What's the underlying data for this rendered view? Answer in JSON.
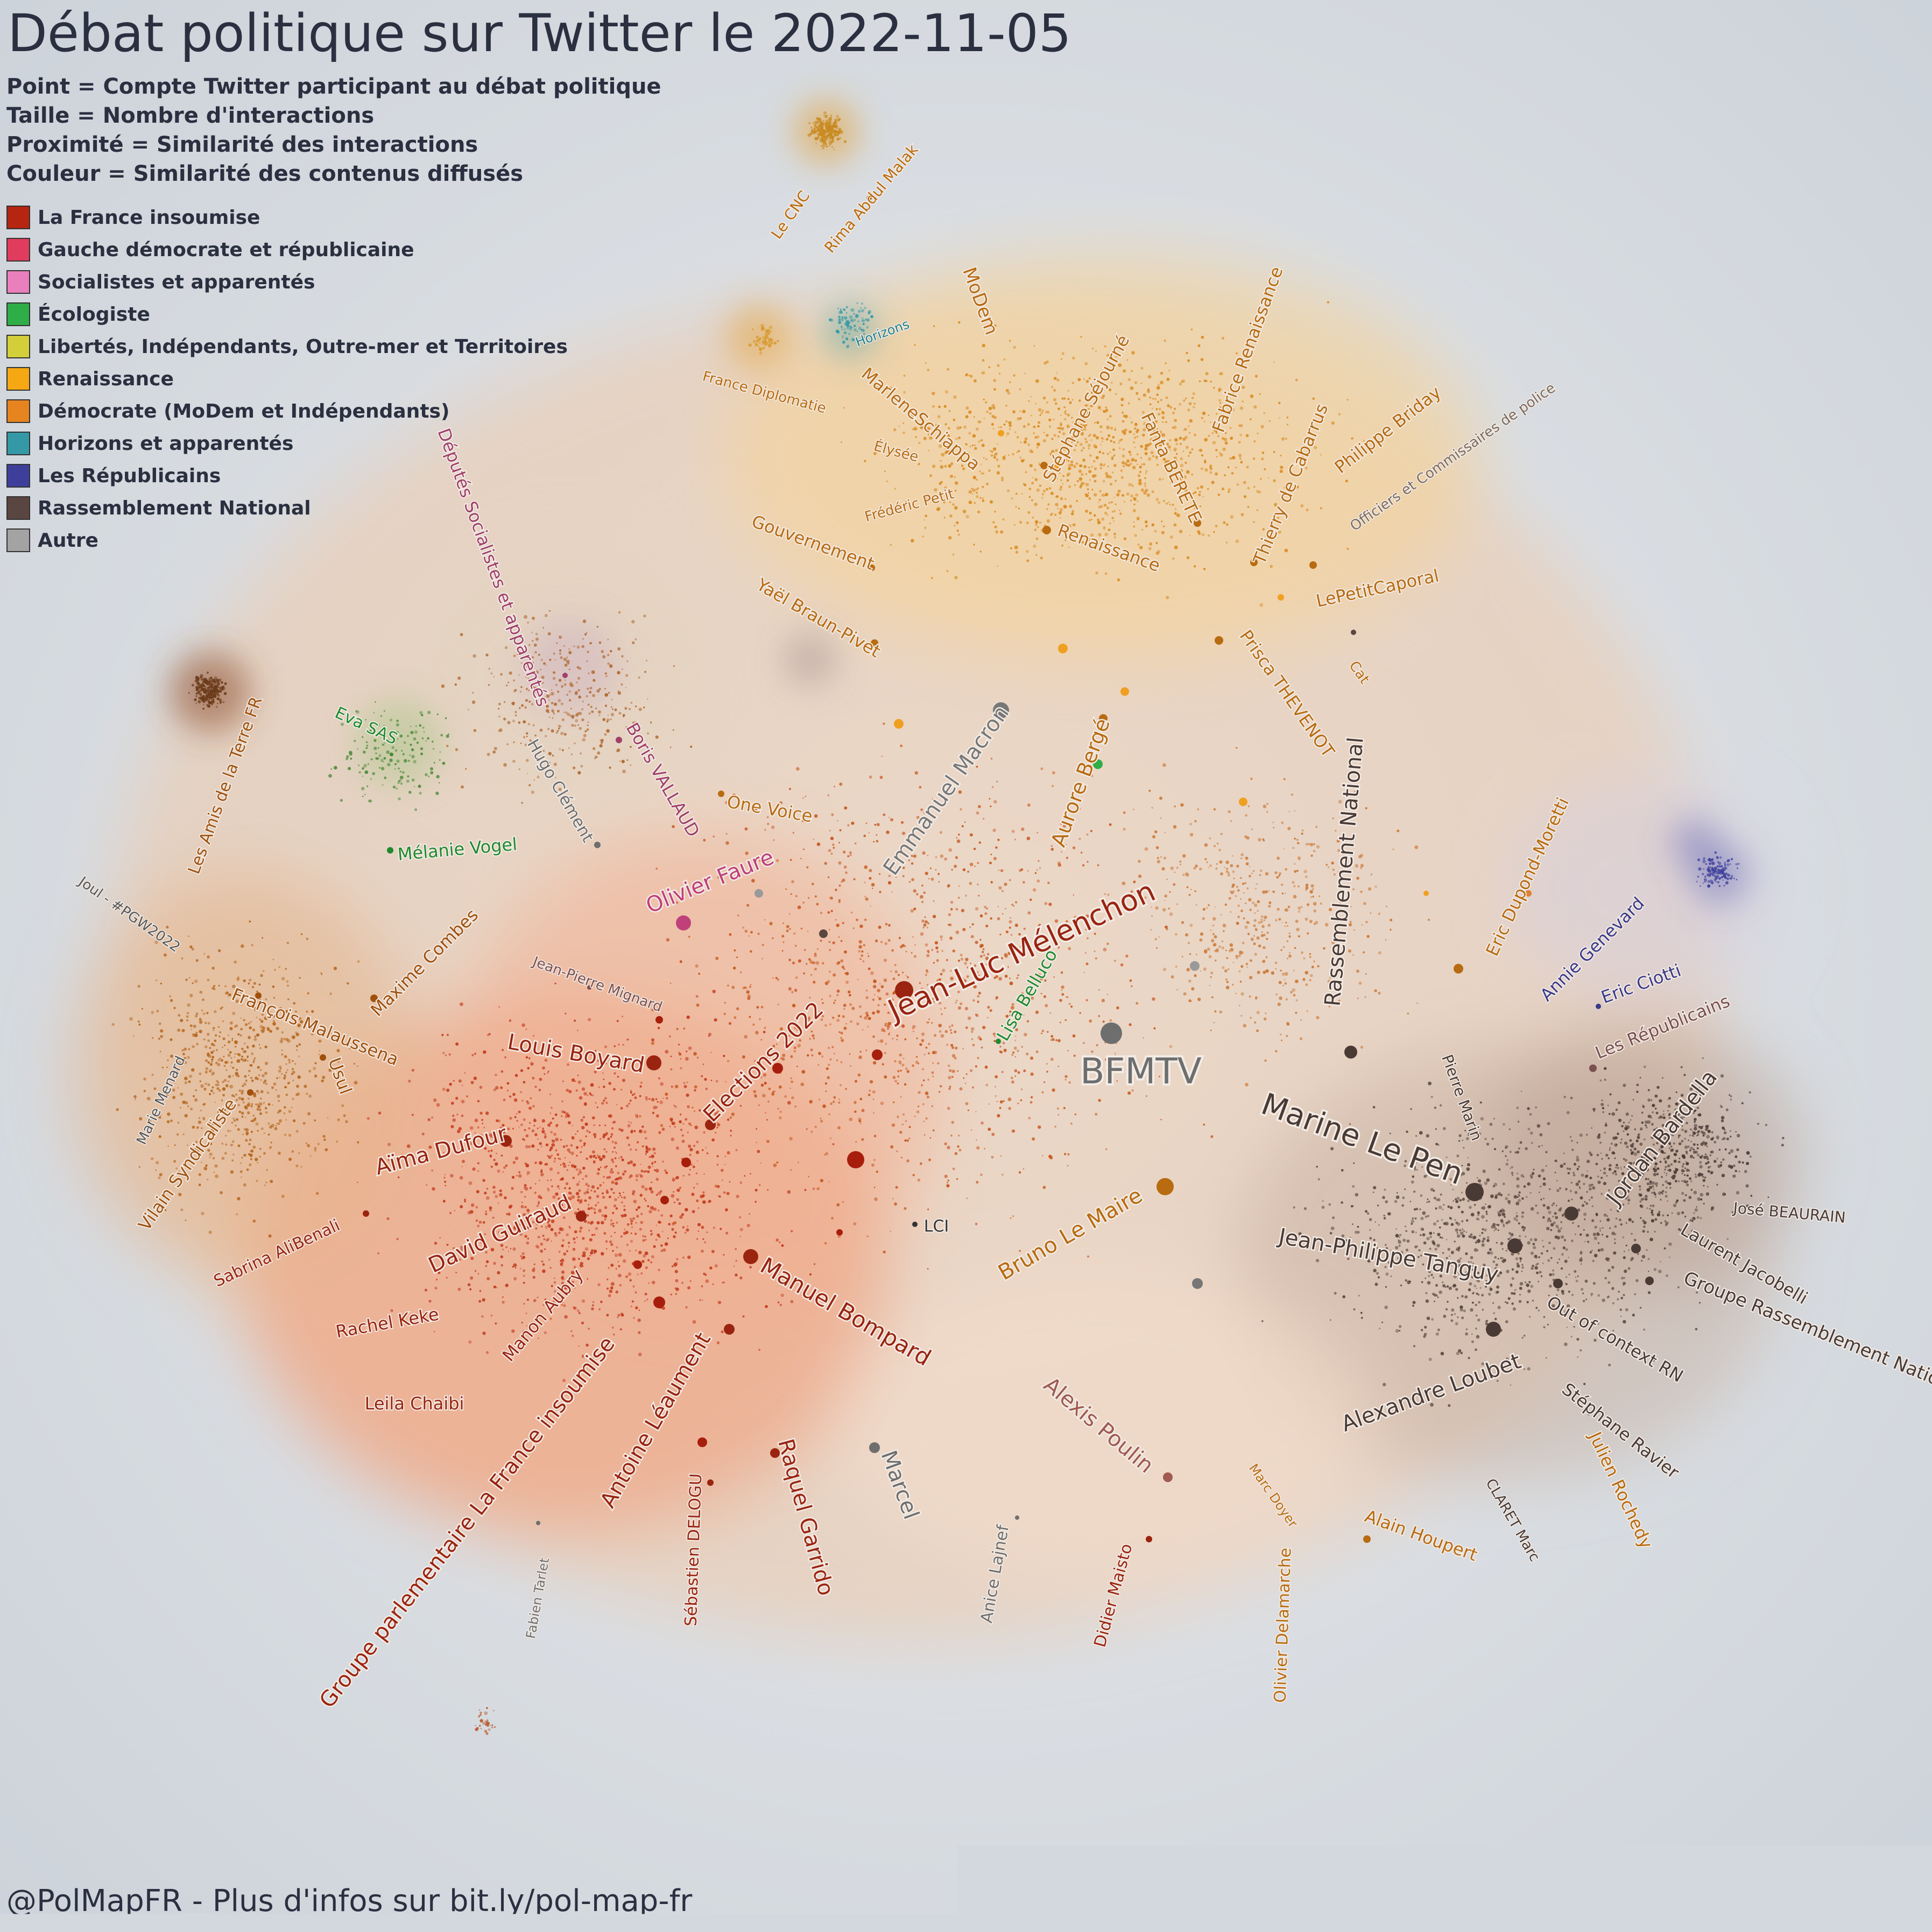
{
  "title": "Débat politique sur Twitter le 2022-11-05",
  "legend_text": [
    "Point = Compte Twitter participant au débat politique",
    "Taille = Nombre d'interactions",
    "Proximité = Similarité des interactions",
    "Couleur = Similarité des contenus diffusés"
  ],
  "legend_items": [
    {
      "label": "La France insoumise",
      "color": "#b52510"
    },
    {
      "label": "Gauche démocrate et républicaine",
      "color": "#e03c5e"
    },
    {
      "label": "Socialistes et apparentés",
      "color": "#e97fbd"
    },
    {
      "label": "Écologiste",
      "color": "#2fad46"
    },
    {
      "label": "Libertés, Indépendants, Outre-mer et Territoires",
      "color": "#d3cf3b"
    },
    {
      "label": "Renaissance",
      "color": "#f5a813"
    },
    {
      "label": "Démocrate (MoDem et Indépendants)",
      "color": "#e6841f"
    },
    {
      "label": "Horizons et apparentés",
      "color": "#3598a7"
    },
    {
      "label": "Les Républicains",
      "color": "#3e3f9b"
    },
    {
      "label": "Rassemblement National",
      "color": "#5a4640"
    },
    {
      "label": "Autre",
      "color": "#a3a3a3"
    }
  ],
  "footer": "@PolMapFR - Plus d'infos sur bit.ly/pol-map-fr",
  "accounts": [
    {
      "label": "Le CNC",
      "color": "#b86b10"
    },
    {
      "label": "Rima Abdul Malak",
      "color": "#b86b10"
    },
    {
      "label": "Horizons",
      "color": "#1f7f8c"
    },
    {
      "label": "MoDem",
      "color": "#b86b10"
    },
    {
      "label": "France Diplomatie",
      "color": "#b86b10"
    },
    {
      "label": "MarleneSchiappa",
      "color": "#b86b10"
    },
    {
      "label": "Stéphane Séjourné",
      "color": "#b86b10"
    },
    {
      "label": "Fabrice Renaissance",
      "color": "#b86b10"
    },
    {
      "label": "Philippe Briday",
      "color": "#b86b10"
    },
    {
      "label": "Officiers et Commissaires de police",
      "color": "#7a6a60"
    },
    {
      "label": "Élysée",
      "color": "#b86b10"
    },
    {
      "label": "Fanta BERETE",
      "color": "#b86b10"
    },
    {
      "label": "Thierry de Cabarrus",
      "color": "#b86b10"
    },
    {
      "label": "Frédéric Petit",
      "color": "#b86b10"
    },
    {
      "label": "Gouvernement",
      "color": "#b86b10"
    },
    {
      "label": "Renaissance",
      "color": "#b86b10"
    },
    {
      "label": "LePetitCaporal",
      "color": "#b86b10"
    },
    {
      "label": "Yaël Braun-Pivet",
      "color": "#b86b10"
    },
    {
      "label": "Cat",
      "color": "#b86b10"
    },
    {
      "label": "Prisca THEVENOT",
      "color": "#b86b10"
    },
    {
      "label": "Députés Socialistes et apparentés",
      "color": "#a0406a"
    },
    {
      "label": "Eva SAS",
      "color": "#1f8a2e"
    },
    {
      "label": "Hugo Clément",
      "color": "#6e6e6e"
    },
    {
      "label": "Boris VALLAUD",
      "color": "#a0406a"
    },
    {
      "label": "One Voice",
      "color": "#b86b10"
    },
    {
      "label": "Emmanuel Macron",
      "color": "#777777"
    },
    {
      "label": "Aurore Bergé",
      "color": "#b86b10"
    },
    {
      "label": "Rassemblement National",
      "color": "#4a3a35"
    },
    {
      "label": "Les Amis de la Terre FR",
      "color": "#a0500c"
    },
    {
      "label": "Mélanie Vogel",
      "color": "#1f8a2e"
    },
    {
      "label": "Olivier Faure",
      "color": "#c0407a"
    },
    {
      "label": "Jean-Luc Mélenchon",
      "color": "#9a2410"
    },
    {
      "label": "Eric Dupond-Moretti",
      "color": "#b86b10"
    },
    {
      "label": "Annie Genevard",
      "color": "#3a3a8a"
    },
    {
      "label": "Eric Ciotti",
      "color": "#3a3a8a"
    },
    {
      "label": "Les Républicains",
      "color": "#7a5050"
    },
    {
      "label": "Joul - #PGW2022",
      "color": "#555555"
    },
    {
      "label": "Maxime Combes",
      "color": "#a0500c"
    },
    {
      "label": "Jean-Pierre Mignard",
      "color": "#7a5050"
    },
    {
      "label": "Lisa Belluco",
      "color": "#1f8a2e"
    },
    {
      "label": "François Malaussena",
      "color": "#a0500c"
    },
    {
      "label": "Louis Boyard",
      "color": "#9a2410"
    },
    {
      "label": "Elections 2022",
      "color": "#9a2410"
    },
    {
      "label": "BFMTV",
      "color": "#6e6e6e"
    },
    {
      "label": "Pierre Marin",
      "color": "#4a3a35"
    },
    {
      "label": "Marine Le Pen",
      "color": "#4a3a35"
    },
    {
      "label": "Usul",
      "color": "#a0500c"
    },
    {
      "label": "Marie Menard",
      "color": "#555555"
    },
    {
      "label": "Vilain Syndicaliste",
      "color": "#a0500c"
    },
    {
      "label": "Aïma Dufour",
      "color": "#9a2410"
    },
    {
      "label": "Jordan Bardella",
      "color": "#4a3a35"
    },
    {
      "label": "José BEAURAIN",
      "color": "#4a3a35"
    },
    {
      "label": "David Guiraud",
      "color": "#9a2410"
    },
    {
      "label": "Sabrina AliBenali",
      "color": "#9a2410"
    },
    {
      "label": "LCI",
      "color": "#333333"
    },
    {
      "label": "Bruno Le Maire",
      "color": "#b86b10"
    },
    {
      "label": "Jean-Philippe Tanguy",
      "color": "#4a3a35"
    },
    {
      "label": "Laurent Jacobelli",
      "color": "#4a3a35"
    },
    {
      "label": "Groupe Rassemblement National",
      "color": "#4a3a35"
    },
    {
      "label": "Manuel Bompard",
      "color": "#9a2410"
    },
    {
      "label": "Rachel Keke",
      "color": "#9a2410"
    },
    {
      "label": "Manon Aubry",
      "color": "#9a2410"
    },
    {
      "label": "Out of context RN",
      "color": "#4a3a35"
    },
    {
      "label": "Leila Chaibi",
      "color": "#9a2410"
    },
    {
      "label": "Groupe parlementaire La France insoumise",
      "color": "#9a2410"
    },
    {
      "label": "Antoine Léaument",
      "color": "#9a2410"
    },
    {
      "label": "Alexandre Loubet",
      "color": "#4a3a35"
    },
    {
      "label": "Alexis Poulin",
      "color": "#a05a50"
    },
    {
      "label": "Stéphane Ravier",
      "color": "#4a3a35"
    },
    {
      "label": "Julien Rochedy",
      "color": "#b86b10"
    },
    {
      "label": "Marcel",
      "color": "#6e6e6e"
    },
    {
      "label": "Raquel Garrido",
      "color": "#9a2410"
    },
    {
      "label": "Sébastien DELOGU",
      "color": "#9a2410"
    },
    {
      "label": "Fabien Tarlet",
      "color": "#6e6e6e"
    },
    {
      "label": "Anice Lajnef",
      "color": "#6e6e6e"
    },
    {
      "label": "Didier Maisto",
      "color": "#9a2410"
    },
    {
      "label": "Marc Doyer",
      "color": "#b86b10"
    },
    {
      "label": "Olivier Delamarche",
      "color": "#b86b10"
    },
    {
      "label": "Alain Houpert",
      "color": "#b86b10"
    },
    {
      "label": "CLARET Marc",
      "color": "#4a3a35"
    }
  ]
}
